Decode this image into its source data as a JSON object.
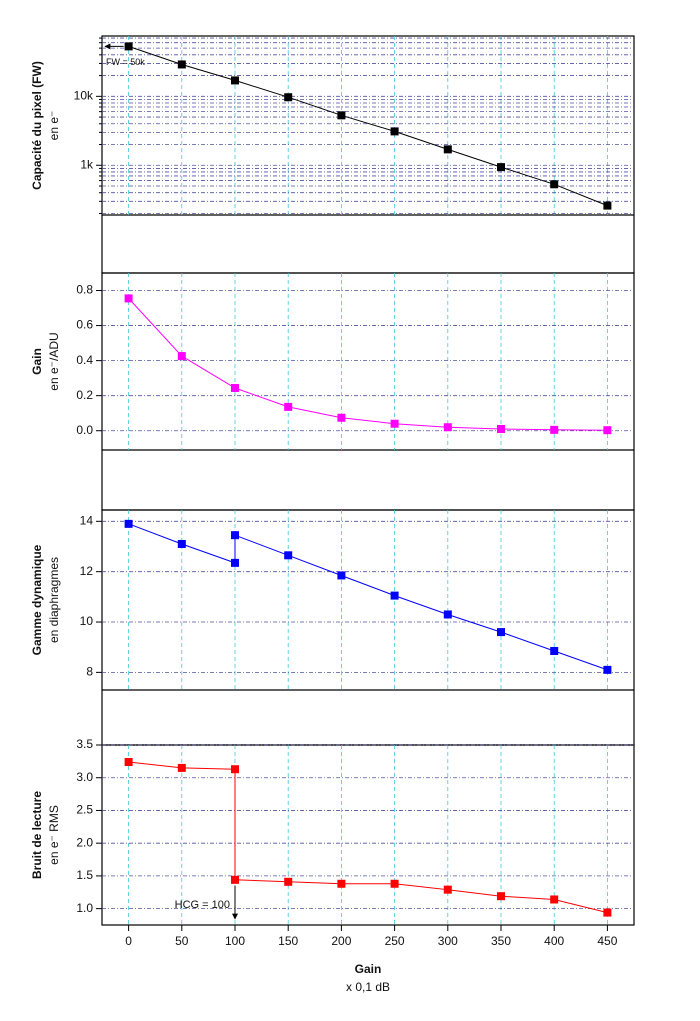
{
  "chart_data": [
    {
      "type": "line",
      "ylabel": "Capacité du pixel (FW)",
      "ylabel_unit": "en e⁻",
      "log": true,
      "color": "#000000",
      "x": [
        0,
        50,
        100,
        150,
        200,
        250,
        300,
        350,
        400,
        450
      ],
      "values": [
        53000,
        29000,
        17000,
        9700,
        5300,
        3100,
        1700,
        940,
        530,
        260
      ],
      "xlim": [
        -25,
        475
      ],
      "xticks": [
        0,
        50,
        100,
        150,
        200,
        250,
        300,
        350,
        400,
        450
      ],
      "ylim": [
        190,
        75000
      ],
      "yticks": [
        {
          "value": 1000,
          "label": "1k"
        },
        {
          "value": 10000,
          "label": "10k"
        }
      ],
      "minor_yticks": [
        200,
        300,
        400,
        500,
        600,
        700,
        800,
        900,
        2000,
        3000,
        4000,
        5000,
        6000,
        7000,
        8000,
        9000,
        20000,
        30000,
        40000,
        50000,
        60000,
        70000
      ],
      "annotation": "FW = 50k",
      "grid": true
    },
    {
      "type": "line",
      "ylabel": "Gain",
      "ylabel_unit": "en e⁻/ADU",
      "color": "#ff00ff",
      "x": [
        0,
        50,
        100,
        150,
        200,
        250,
        300,
        350,
        400,
        450
      ],
      "values": [
        0.755,
        0.426,
        0.244,
        0.136,
        0.074,
        0.04,
        0.02,
        0.01,
        0.005,
        0.003
      ],
      "xlim": [
        -25,
        475
      ],
      "xticks": [
        0,
        50,
        100,
        150,
        200,
        250,
        300,
        350,
        400,
        450
      ],
      "ylim": [
        -0.11,
        0.9
      ],
      "yticks": [
        {
          "value": 0,
          "label": "0.0"
        },
        0.2,
        0.4,
        0.6,
        0.8
      ],
      "grid": true
    },
    {
      "type": "line",
      "ylabel": "Gamme dynamique",
      "ylabel_unit": "en diaphragmes",
      "color": "#0000ff",
      "x": [
        0,
        50,
        100,
        100,
        150,
        200,
        250,
        300,
        350,
        400,
        450
      ],
      "values": [
        13.9,
        13.1,
        12.35,
        13.45,
        12.65,
        11.85,
        11.05,
        10.3,
        9.6,
        8.85,
        8.1
      ],
      "xlim": [
        -25,
        475
      ],
      "xticks": [
        0,
        50,
        100,
        150,
        200,
        250,
        300,
        350,
        400,
        450
      ],
      "ylim": [
        7.3,
        14.45
      ],
      "yticks": [
        8,
        10,
        12,
        14
      ],
      "grid": true
    },
    {
      "type": "line",
      "ylabel": "Bruit de lecture",
      "ylabel_unit": "en e⁻ RMS",
      "color": "#ff0000",
      "x": [
        0,
        50,
        100,
        100,
        150,
        200,
        250,
        300,
        350,
        400,
        450
      ],
      "values": [
        3.24,
        3.15,
        3.13,
        1.44,
        1.41,
        1.38,
        1.38,
        1.29,
        1.19,
        1.14,
        0.94
      ],
      "xlim": [
        -25,
        475
      ],
      "xticks": [
        0,
        50,
        100,
        150,
        200,
        250,
        300,
        350,
        400,
        450
      ],
      "ylim": [
        0.75,
        3.5
      ],
      "yticks": [
        {
          "value": 1,
          "label": "1.0"
        },
        1.5,
        {
          "value": 2,
          "label": "2.0"
        },
        2.5,
        {
          "value": 3,
          "label": "3.0"
        },
        3.5
      ],
      "annotation": "HCG = 100",
      "xlabel": "Gain",
      "xlabel_unit": "x 0,1 dB",
      "grid": true
    }
  ]
}
